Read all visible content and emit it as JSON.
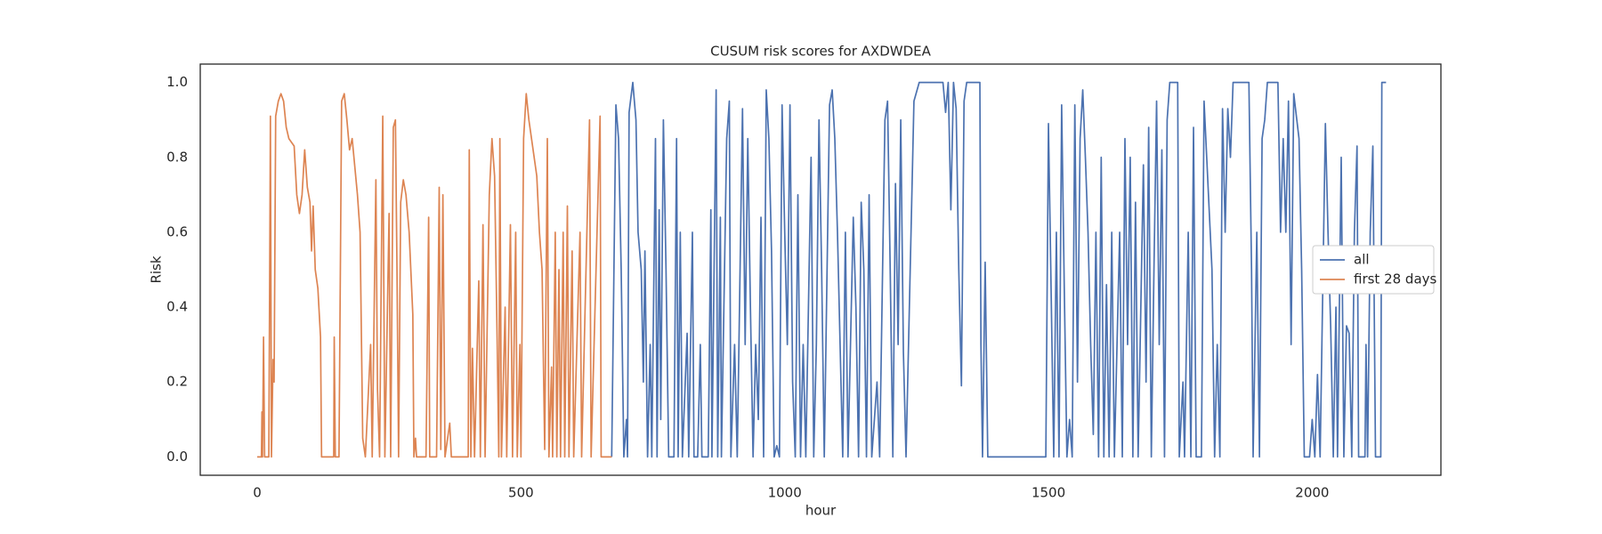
{
  "chart_data": {
    "type": "line",
    "title": "CUSUM risk scores for AXDWDEA",
    "x_label": "hour",
    "y_label": "Risk",
    "xlim": [
      -108,
      2244
    ],
    "ylim": [
      -0.049,
      1.049
    ],
    "xticks": [
      0,
      500,
      1000,
      1500,
      2000
    ],
    "yticks": [
      {
        "value": 0,
        "label": "0.0"
      },
      {
        "value": 0.2,
        "label": "0.2"
      },
      {
        "value": 0.4,
        "label": "0.4"
      },
      {
        "value": 0.6,
        "label": "0.6"
      },
      {
        "value": 0.8,
        "label": "0.8"
      },
      {
        "value": 1,
        "label": "1.0"
      }
    ],
    "grid": false,
    "legend": "center right",
    "series": [
      {
        "name": "all",
        "color": "#4c72b0",
        "x": [
          672,
          680,
          685,
          690,
          695,
          700,
          702,
          705,
          712,
          718,
          722,
          728,
          732,
          735,
          740,
          745,
          748,
          755,
          758,
          762,
          765,
          770,
          775,
          780,
          790,
          795,
          798,
          802,
          806,
          815,
          818,
          825,
          828,
          835,
          840,
          843,
          855,
          860,
          862,
          870,
          873,
          878,
          880,
          890,
          895,
          898,
          905,
          910,
          920,
          925,
          930,
          935,
          940,
          945,
          950,
          955,
          960,
          965,
          970,
          975,
          980,
          985,
          990,
          995,
          1000,
          1005,
          1010,
          1015,
          1020,
          1025,
          1030,
          1035,
          1040,
          1050,
          1055,
          1060,
          1065,
          1070,
          1075,
          1085,
          1090,
          1095,
          1100,
          1105,
          1110,
          1115,
          1120,
          1130,
          1135,
          1140,
          1145,
          1150,
          1155,
          1160,
          1165,
          1175,
          1180,
          1190,
          1195,
          1200,
          1205,
          1210,
          1215,
          1220,
          1225,
          1230,
          1245,
          1255,
          1300,
          1305,
          1310,
          1315,
          1320,
          1325,
          1330,
          1335,
          1340,
          1345,
          1370,
          1372,
          1375,
          1380,
          1385,
          1495,
          1500,
          1505,
          1510,
          1515,
          1520,
          1525,
          1530,
          1535,
          1540,
          1545,
          1550,
          1555,
          1560,
          1565,
          1570,
          1575,
          1580,
          1585,
          1590,
          1595,
          1600,
          1605,
          1610,
          1615,
          1620,
          1625,
          1635,
          1640,
          1645,
          1650,
          1655,
          1660,
          1665,
          1670,
          1680,
          1685,
          1690,
          1695,
          1700,
          1705,
          1710,
          1715,
          1720,
          1725,
          1730,
          1745,
          1748,
          1755,
          1758,
          1765,
          1770,
          1775,
          1780,
          1790,
          1795,
          1800,
          1805,
          1810,
          1815,
          1820,
          1825,
          1830,
          1835,
          1840,
          1845,
          1850,
          1880,
          1885,
          1888,
          1895,
          1900,
          1905,
          1910,
          1915,
          1935,
          1940,
          1945,
          1950,
          1955,
          1960,
          1965,
          1975,
          1980,
          1985,
          1995,
          2000,
          2005,
          2010,
          2015,
          2025,
          2030,
          2035,
          2040,
          2045,
          2048,
          2055,
          2060,
          2065,
          2070,
          2075,
          2080,
          2085,
          2088,
          2100,
          2102,
          2105,
          2110,
          2115,
          2120,
          2130,
          2132,
          2140
        ],
        "values": [
          0,
          0.94,
          0.85,
          0.5,
          0,
          0.1,
          0,
          0.92,
          1,
          0.9,
          0.6,
          0.5,
          0.2,
          0.55,
          0,
          0.3,
          0,
          0.85,
          0,
          0.66,
          0.1,
          0.9,
          0.5,
          0,
          0,
          0.85,
          0,
          0.6,
          0,
          0.33,
          0,
          0.6,
          0,
          0,
          0.3,
          0,
          0,
          0.66,
          0,
          0.98,
          0,
          0.64,
          0,
          0.85,
          0.95,
          0,
          0.3,
          0,
          0.93,
          0.3,
          0.85,
          0.4,
          0,
          0.3,
          0.1,
          0.64,
          0,
          0.98,
          0.85,
          0.55,
          0,
          0.03,
          0,
          0.94,
          0.6,
          0.3,
          0.94,
          0.2,
          0,
          0.7,
          0,
          0.3,
          0,
          0.8,
          0,
          0.3,
          0.9,
          0.5,
          0,
          0.94,
          0.98,
          0.85,
          0.6,
          0.3,
          0,
          0.6,
          0,
          0.64,
          0.4,
          0,
          0.68,
          0.5,
          0,
          0.7,
          0,
          0.2,
          0,
          0.9,
          0.95,
          0.5,
          0,
          0.73,
          0.3,
          0.9,
          0.28,
          0,
          0.95,
          1,
          1,
          0.92,
          1,
          0.66,
          1,
          0.93,
          0.5,
          0.19,
          0.95,
          1,
          1,
          0.3,
          0,
          0.52,
          0,
          0,
          0.89,
          0.45,
          0,
          0.6,
          0,
          0.94,
          0.45,
          0,
          0.1,
          0,
          0.94,
          0.2,
          0.85,
          0.98,
          0.8,
          0.6,
          0.3,
          0.06,
          0.6,
          0,
          0.8,
          0,
          0.46,
          0,
          0.6,
          0,
          0.6,
          0,
          0.85,
          0.3,
          0.8,
          0,
          0.68,
          0,
          0.78,
          0.2,
          0.88,
          0,
          0.5,
          0.95,
          0.3,
          0.82,
          0,
          0.9,
          1,
          1,
          0,
          0.2,
          0,
          0.6,
          0,
          0.88,
          0,
          0,
          0.95,
          0.8,
          0.65,
          0.5,
          0,
          0.3,
          0,
          0.93,
          0.6,
          0.93,
          0.8,
          1,
          1,
          0.5,
          0,
          0.6,
          0,
          0.85,
          0.9,
          1,
          1,
          0.6,
          0.85,
          0.6,
          0.95,
          0.3,
          0.97,
          0.85,
          0.5,
          0,
          0,
          0.1,
          0,
          0.22,
          0,
          0.89,
          0.6,
          0.35,
          0,
          0.4,
          0,
          0.8,
          0,
          0.35,
          0.33,
          0,
          0.6,
          0.83,
          0,
          0,
          0.3,
          0,
          0.6,
          0.83,
          0,
          0,
          1,
          1
        ]
      },
      {
        "name": "first 28 days",
        "color": "#dd8452",
        "x": [
          0,
          8,
          9,
          10,
          12,
          14,
          22,
          25,
          27,
          30,
          32,
          35,
          40,
          45,
          50,
          55,
          60,
          70,
          75,
          80,
          85,
          90,
          95,
          100,
          103,
          106,
          110,
          115,
          120,
          122,
          145,
          146,
          148,
          155,
          160,
          165,
          170,
          175,
          180,
          190,
          195,
          200,
          205,
          215,
          218,
          225,
          228,
          232,
          238,
          242,
          250,
          253,
          258,
          262,
          265,
          268,
          272,
          277,
          282,
          288,
          295,
          297,
          300,
          302,
          320,
          325,
          327,
          340,
          345,
          348,
          352,
          356,
          365,
          368,
          400,
          402,
          405,
          408,
          412,
          420,
          423,
          428,
          432,
          440,
          445,
          450,
          455,
          458,
          460,
          463,
          470,
          473,
          480,
          484,
          490,
          493,
          498,
          500,
          505,
          510,
          515,
          520,
          525,
          530,
          535,
          540,
          545,
          550,
          553,
          558,
          560,
          565,
          568,
          572,
          575,
          580,
          583,
          588,
          591,
          597,
          600,
          612,
          615,
          630,
          633,
          650,
          652,
          672
        ],
        "values": [
          0,
          0,
          0.12,
          0,
          0.32,
          0,
          0,
          0.91,
          0,
          0.26,
          0.2,
          0.91,
          0.95,
          0.97,
          0.95,
          0.88,
          0.85,
          0.83,
          0.7,
          0.65,
          0.7,
          0.82,
          0.72,
          0.68,
          0.55,
          0.67,
          0.5,
          0.45,
          0.32,
          0,
          0,
          0.32,
          0,
          0,
          0.95,
          0.97,
          0.9,
          0.82,
          0.85,
          0.7,
          0.6,
          0.05,
          0,
          0.3,
          0,
          0.74,
          0.18,
          0,
          0.91,
          0,
          0.65,
          0,
          0.88,
          0.9,
          0.5,
          0,
          0.68,
          0.74,
          0.7,
          0.6,
          0.38,
          0,
          0.05,
          0,
          0,
          0.64,
          0,
          0,
          0.72,
          0.02,
          0.7,
          0,
          0.09,
          0,
          0,
          0.82,
          0,
          0.29,
          0,
          0.47,
          0,
          0.62,
          0,
          0.7,
          0.85,
          0.75,
          0.3,
          0,
          0.85,
          0,
          0.4,
          0,
          0.62,
          0,
          0.6,
          0,
          0.3,
          0,
          0.85,
          0.97,
          0.9,
          0.85,
          0.8,
          0.75,
          0.6,
          0.5,
          0.02,
          0.85,
          0,
          0.24,
          0,
          0.6,
          0,
          0.5,
          0,
          0.6,
          0,
          0.67,
          0,
          0.55,
          0,
          0.6,
          0,
          0.9,
          0,
          0.91,
          0,
          0
        ]
      }
    ]
  }
}
